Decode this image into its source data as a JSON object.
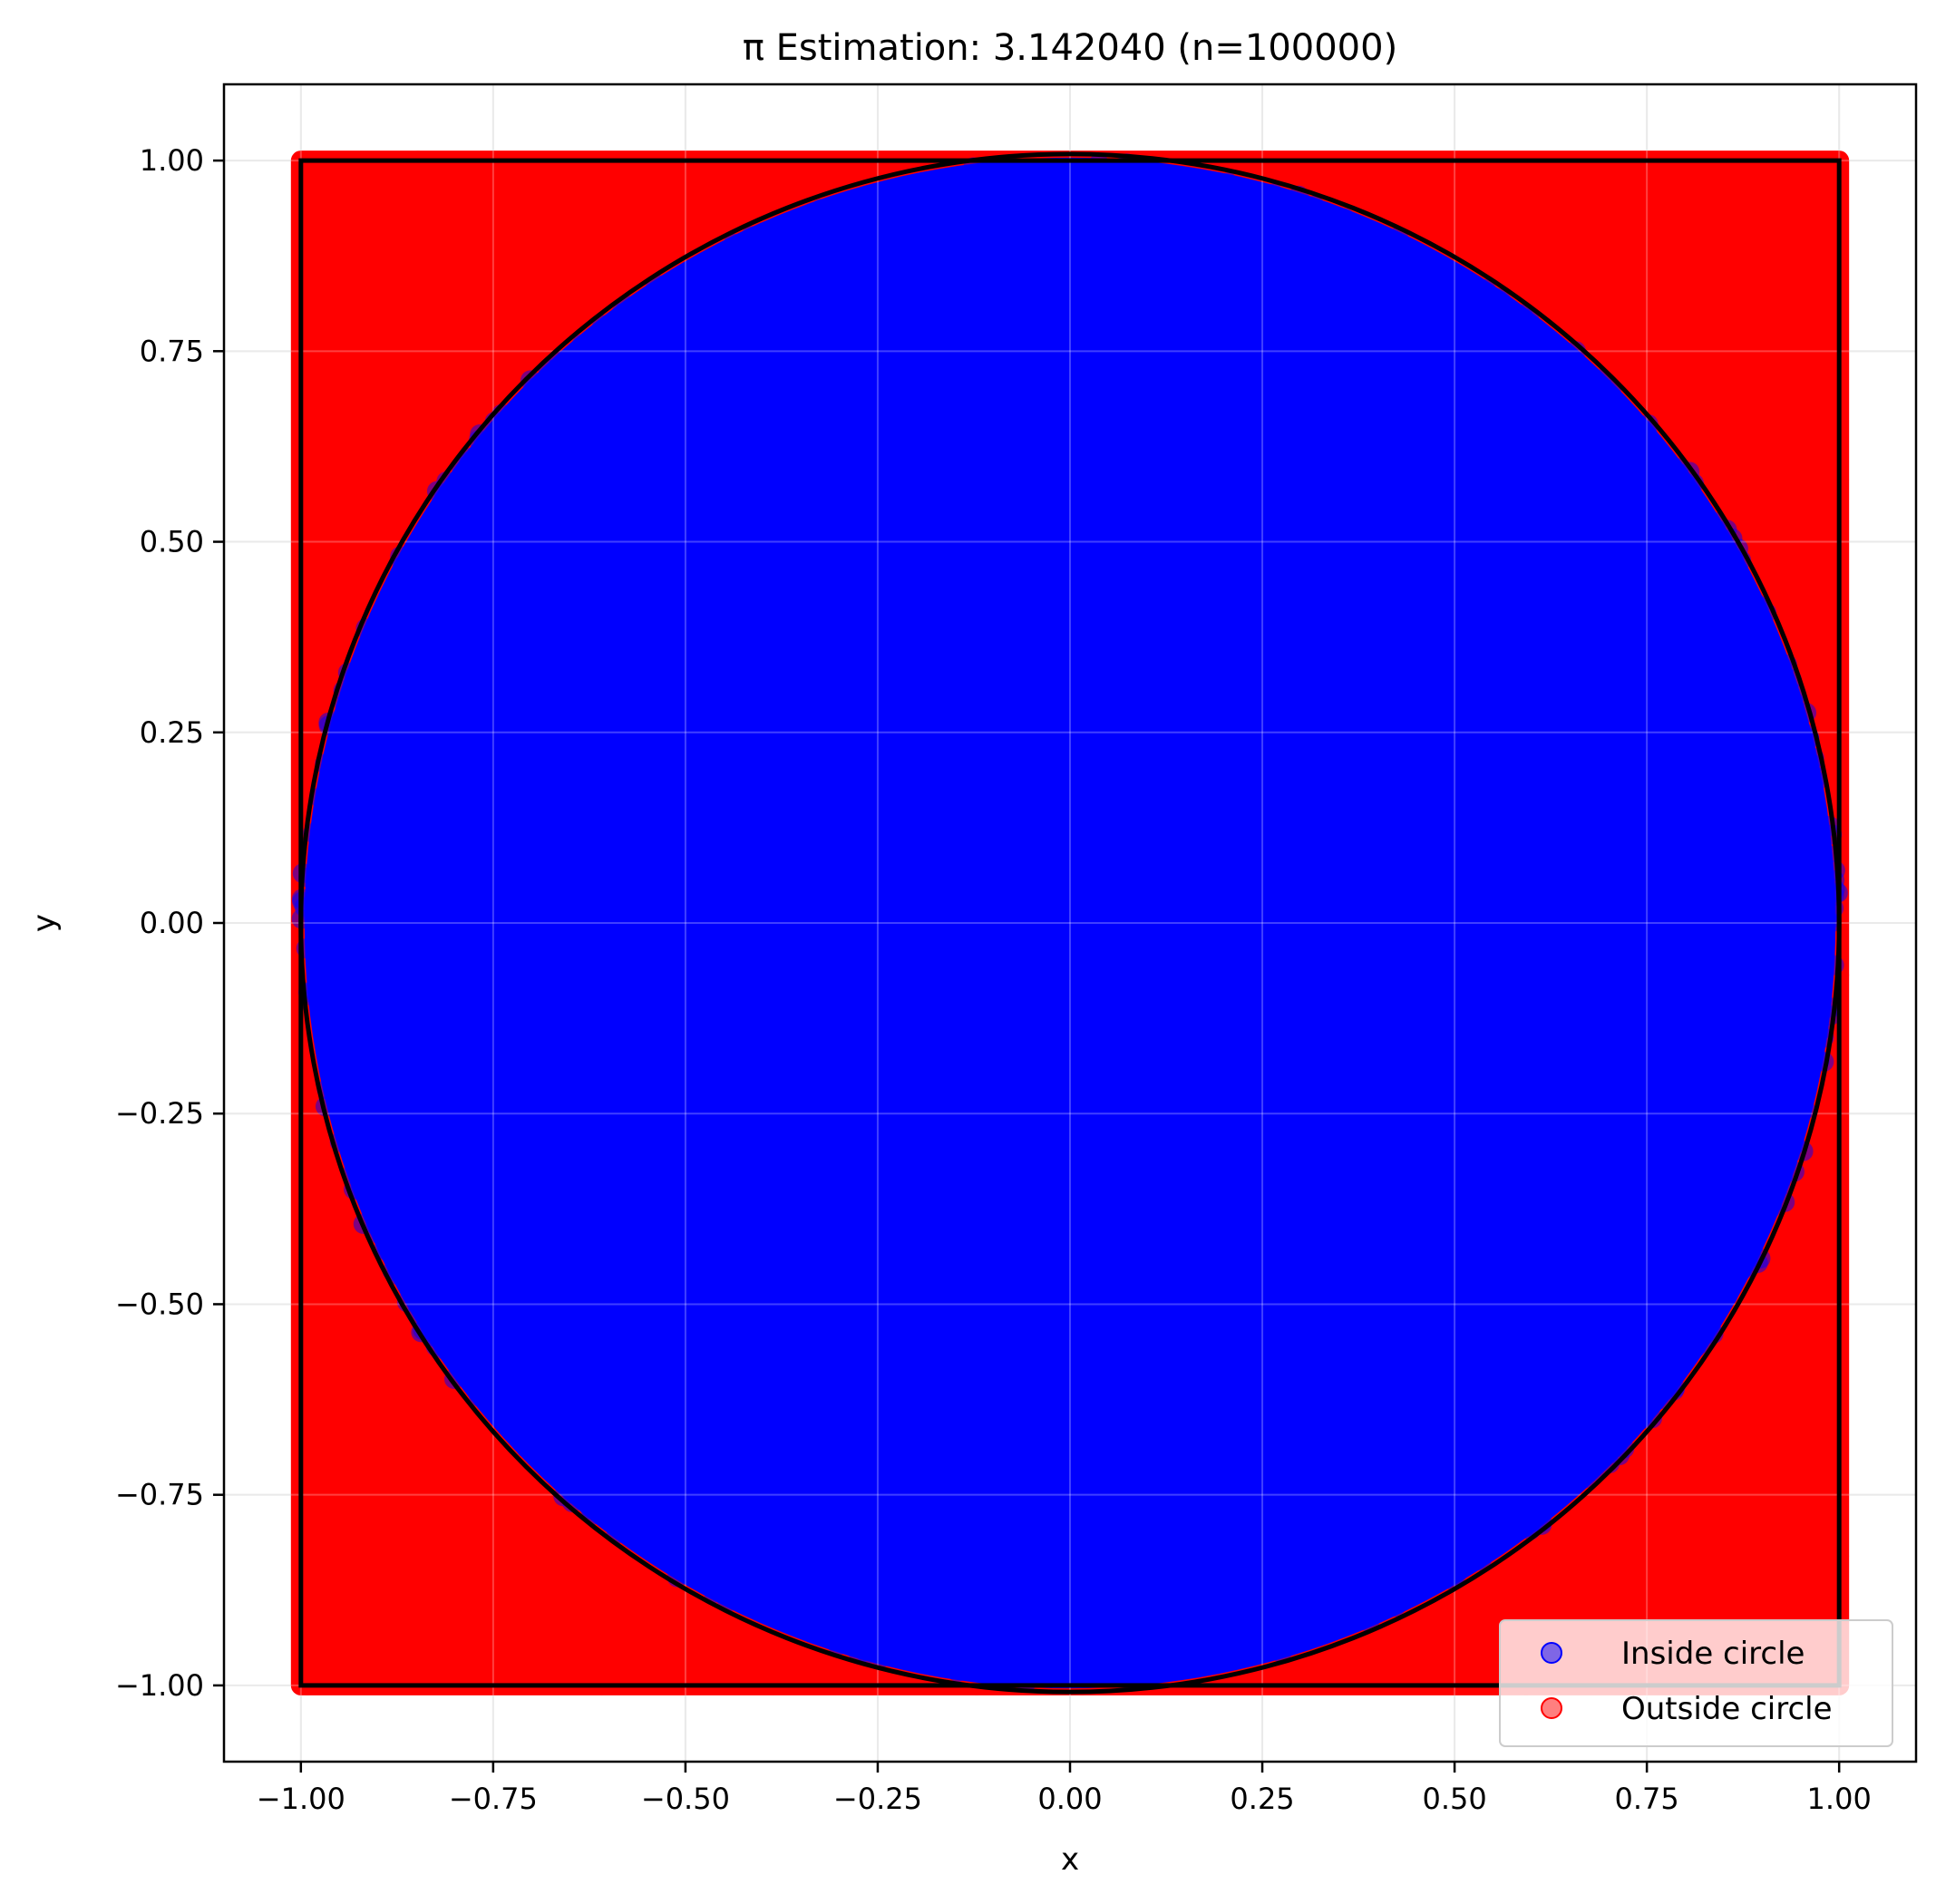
{
  "chart_data": {
    "type": "scatter",
    "title": "π Estimation: 3.142040 (n=100000)",
    "xlabel": "x",
    "ylabel": "y",
    "xlim": [
      -1.1,
      1.1
    ],
    "ylim": [
      -1.1,
      1.1
    ],
    "xticks": [
      -1.0,
      -0.75,
      -0.5,
      -0.25,
      0.0,
      0.25,
      0.5,
      0.75,
      1.0
    ],
    "yticks": [
      -1.0,
      -0.75,
      -0.5,
      -0.25,
      0.0,
      0.25,
      0.5,
      0.75,
      1.0
    ],
    "xtick_labels": [
      "−1.00",
      "−0.75",
      "−0.50",
      "−0.25",
      "0.00",
      "0.25",
      "0.50",
      "0.75",
      "1.00"
    ],
    "ytick_labels": [
      "−1.00",
      "−0.75",
      "−0.50",
      "−0.25",
      "0.00",
      "0.25",
      "0.50",
      "0.75",
      "1.00"
    ],
    "grid": true,
    "legend_position": "lower-right",
    "series": [
      {
        "name": "Inside circle",
        "color": "#0000ff",
        "region": "x^2 + y^2 <= 1"
      },
      {
        "name": "Outside circle",
        "color": "#ff0000",
        "region": "x^2 + y^2 > 1, within square [-1, 1] x [-1, 1]"
      }
    ],
    "n_points": 100000,
    "pi_estimate": 3.14204,
    "reference_shapes": [
      {
        "type": "circle",
        "center": [
          0,
          0
        ],
        "radius": 1,
        "color": "#000000"
      },
      {
        "type": "square",
        "x": [
          -1,
          1
        ],
        "y": [
          -1,
          1
        ],
        "color": "#000000"
      }
    ]
  }
}
